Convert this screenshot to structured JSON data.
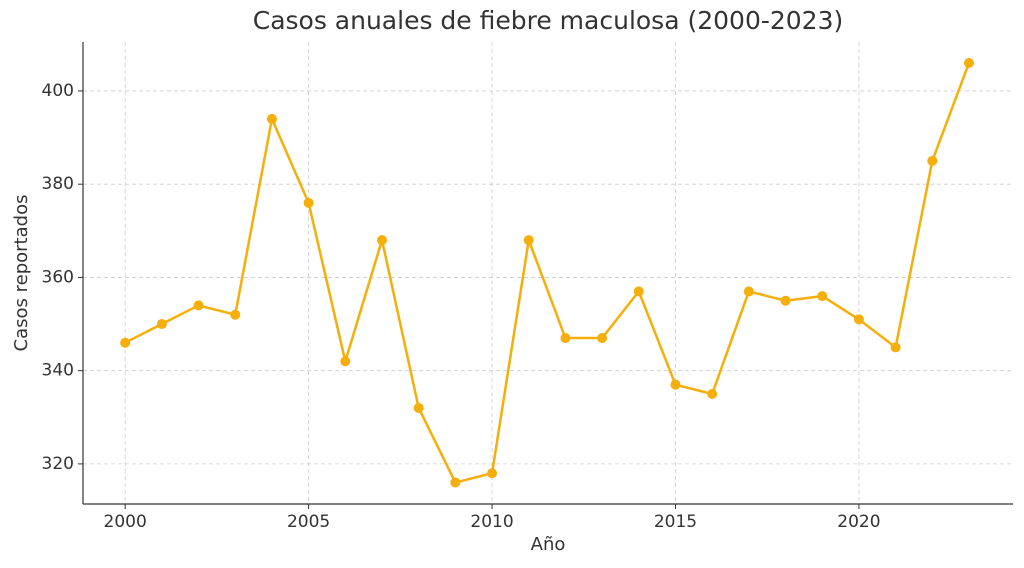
{
  "chart_data": {
    "type": "line",
    "title": "Casos anuales de fiebre maculosa (2000-2023)",
    "x_label": "Año",
    "y_label": "Casos reportados",
    "x": [
      2000,
      2001,
      2002,
      2003,
      2004,
      2005,
      2006,
      2007,
      2008,
      2009,
      2010,
      2011,
      2012,
      2013,
      2014,
      2015,
      2016,
      2017,
      2018,
      2019,
      2020,
      2021,
      2022,
      2023
    ],
    "series": [
      {
        "name": "Casos",
        "color": "#f5ae0a",
        "values": [
          346,
          350,
          354,
          352,
          394,
          376,
          342,
          368,
          332,
          316,
          318,
          368,
          347,
          347,
          357,
          337,
          335,
          357,
          355,
          356,
          351,
          345,
          385,
          406
        ]
      }
    ],
    "xlim": [
      1998.85,
      2024.2
    ],
    "xticks": [
      2000,
      2005,
      2010,
      2015,
      2020
    ],
    "ylim": [
      311.4,
      410.5
    ],
    "yticks": [
      320,
      340,
      360,
      380,
      400
    ],
    "grid": true
  }
}
